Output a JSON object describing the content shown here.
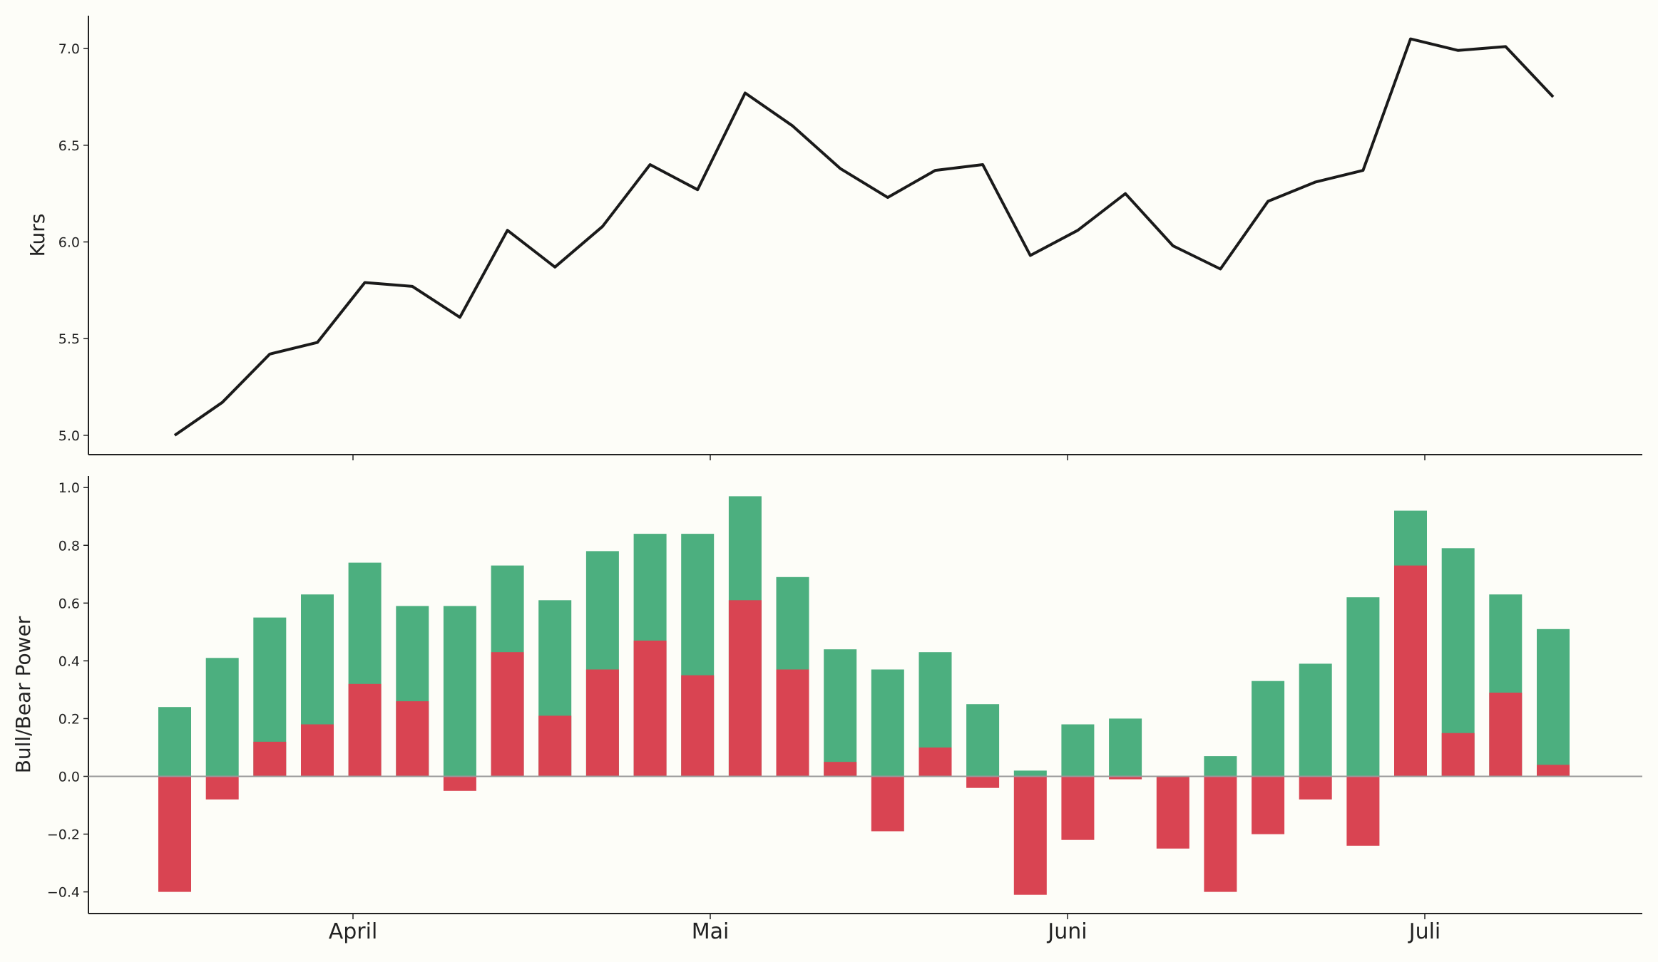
{
  "chart_data": [
    {
      "type": "line",
      "ylabel": "Kurs",
      "ylim": [
        4.9,
        7.17
      ],
      "yticks": [
        "5.0",
        "5.5",
        "6.0",
        "6.5",
        "7.0"
      ],
      "series": [
        {
          "values": [
            5.0,
            5.17,
            5.42,
            5.48,
            5.79,
            5.77,
            5.61,
            6.06,
            5.87,
            6.08,
            6.4,
            6.27,
            6.77,
            6.6,
            6.38,
            6.23,
            6.37,
            6.4,
            5.93,
            6.06,
            6.25,
            5.98,
            5.86,
            6.21,
            6.31,
            6.37,
            7.05,
            6.99,
            7.01,
            6.75
          ]
        }
      ],
      "grid": false,
      "color": "#1a1a1a"
    },
    {
      "type": "bar",
      "ylabel": "Bull/Bear Power",
      "ylim": [
        -0.475,
        1.04
      ],
      "yticks": [
        "−0.4",
        "−0.2",
        "0.0",
        "0.2",
        "0.4",
        "0.6",
        "0.8",
        "1.0"
      ],
      "x_tick_labels": [
        "April",
        "Mai",
        "Juni",
        "Juli"
      ],
      "series": [
        {
          "color": "#4caf7f",
          "values": [
            0.24,
            0.41,
            0.55,
            0.63,
            0.74,
            0.59,
            0.59,
            0.73,
            0.61,
            0.78,
            0.84,
            0.84,
            0.97,
            0.69,
            0.44,
            0.37,
            0.43,
            0.25,
            0.02,
            0.18,
            0.2,
            0.0,
            0.07,
            0.33,
            0.39,
            0.62,
            0.92,
            0.79,
            0.63,
            0.51
          ]
        },
        {
          "color": "#d94452",
          "values": [
            -0.4,
            -0.08,
            0.12,
            0.18,
            0.32,
            0.26,
            -0.05,
            0.43,
            0.21,
            0.37,
            0.47,
            0.35,
            0.61,
            0.37,
            0.05,
            -0.19,
            0.1,
            -0.04,
            -0.41,
            -0.22,
            -0.01,
            -0.25,
            -0.4,
            -0.2,
            -0.08,
            -0.24,
            0.73,
            0.15,
            0.29,
            0.04
          ]
        }
      ],
      "zero_line": true,
      "grid": false
    }
  ]
}
